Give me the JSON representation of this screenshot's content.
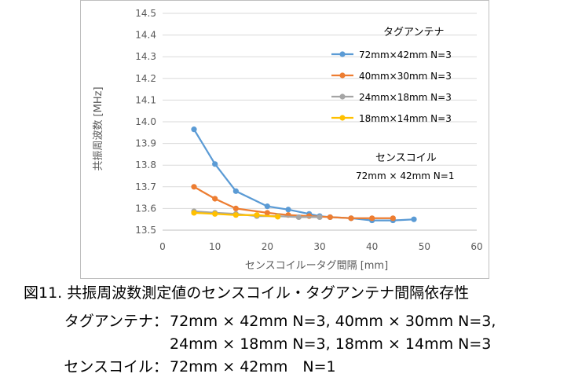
{
  "chart_data": {
    "type": "line",
    "xlabel": "センスコイルータグ間隔 [mm]",
    "ylabel": "共振周波数 [MHz]",
    "xlim": [
      0,
      60
    ],
    "ylim": [
      13.5,
      14.5
    ],
    "x_ticks": [
      "0",
      "10",
      "20",
      "30",
      "40",
      "50",
      "60"
    ],
    "y_ticks": [
      "13.5",
      "13.6",
      "13.7",
      "13.8",
      "13.9",
      "14.0",
      "14.1",
      "14.2",
      "14.3",
      "14.4",
      "14.5"
    ],
    "grid": "horizontal",
    "legend_title": "タグアンテナ",
    "legend_position": "right",
    "annotation": [
      "センスコイル",
      "72mm × 42mm N=1"
    ],
    "series": [
      {
        "name": "72mm×42mm N=3",
        "color": "#5b9bd5",
        "x": [
          6,
          10,
          14,
          20,
          24,
          28,
          30,
          32,
          36,
          40,
          44,
          48
        ],
        "y": [
          13.965,
          13.805,
          13.68,
          13.61,
          13.595,
          13.575,
          13.565,
          13.56,
          13.555,
          13.545,
          13.545,
          13.55
        ]
      },
      {
        "name": "40mm×30mm N=3",
        "color": "#ed7d31",
        "x": [
          6,
          10,
          14,
          20,
          24,
          28,
          32,
          36,
          40,
          44
        ],
        "y": [
          13.7,
          13.645,
          13.6,
          13.58,
          13.57,
          13.565,
          13.56,
          13.555,
          13.555,
          13.555
        ]
      },
      {
        "name": "24mm×18mm N=3",
        "color": "#a5a5a5",
        "x": [
          6,
          10,
          14,
          18,
          22,
          26,
          30
        ],
        "y": [
          13.587,
          13.58,
          13.575,
          13.565,
          13.565,
          13.56,
          13.56
        ]
      },
      {
        "name": "18mm×14mm N=3",
        "color": "#ffc000",
        "x": [
          6,
          10,
          14,
          18,
          22
        ],
        "y": [
          13.58,
          13.575,
          13.57,
          13.57,
          13.562
        ]
      }
    ]
  },
  "caption": {
    "title": "図11. 共振周波数測定値のセンスコイル・タグアンテナ間隔依存性",
    "tag_label": "タグアンテナ：",
    "tag_line1": "72mm × 42mm N=3, 40mm × 30mm N=3,",
    "tag_line2": "24mm × 18mm N=3, 18mm × 14mm N=3",
    "sense_label": "センスコイル：",
    "sense_value": "72mm × 42mm　N=1"
  }
}
